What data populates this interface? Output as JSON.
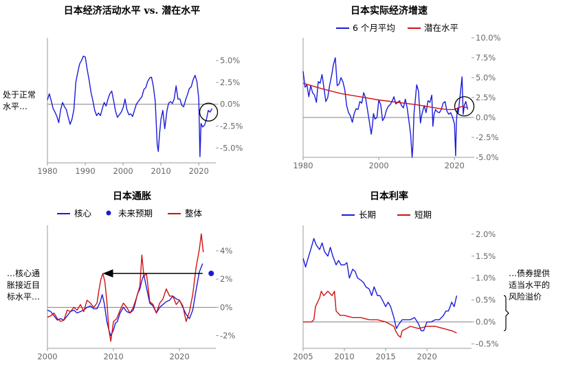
{
  "colors": {
    "blue": "#1a1adb",
    "red": "#d01010",
    "axis": "#999999",
    "zero": "#808080",
    "text": "#666666"
  },
  "chart_data": [
    {
      "type": "line",
      "title": "日本经济活动水平  vs. 潜在水平",
      "note": [
        "处于正常",
        "水平…"
      ],
      "x_ticks": [
        "1980",
        "1990",
        "2000",
        "2010",
        "2020"
      ],
      "y_ticks": [
        "5.0%",
        "2.5%",
        "0.0%",
        "-2.5%",
        "-5.0%"
      ],
      "xlim": [
        1980,
        2024.5
      ],
      "ylim": [
        -6.7,
        7.6
      ],
      "highlight": {
        "shape": "circle",
        "x": 2022.6,
        "y": -0.9
      },
      "series": [
        {
          "color": "blue",
          "x": [
            1980.0,
            1980.5,
            1981.0,
            1981.5,
            1982.0,
            1982.5,
            1983.0,
            1983.5,
            1984.0,
            1984.5,
            1985.0,
            1985.5,
            1986.0,
            1986.5,
            1987.0,
            1987.5,
            1988.0,
            1988.5,
            1989.0,
            1989.5,
            1990.0,
            1990.5,
            1991.0,
            1991.5,
            1992.0,
            1992.5,
            1993.0,
            1993.5,
            1994.0,
            1994.5,
            1995.0,
            1995.5,
            1996.0,
            1996.5,
            1997.0,
            1997.5,
            1998.0,
            1998.5,
            1999.0,
            1999.5,
            2000.0,
            2000.5,
            2001.0,
            2001.5,
            2002.0,
            2002.5,
            2003.0,
            2003.5,
            2004.0,
            2004.5,
            2005.0,
            2005.5,
            2006.0,
            2006.5,
            2007.0,
            2007.5,
            2008.0,
            2008.5,
            2009.0,
            2009.3,
            2009.6,
            2010.0,
            2010.5,
            2011.0,
            2011.3,
            2011.6,
            2012.0,
            2012.5,
            2013.0,
            2013.5,
            2014.0,
            2014.5,
            2015.0,
            2015.5,
            2016.0,
            2016.5,
            2017.0,
            2017.5,
            2018.0,
            2018.5,
            2019.0,
            2019.5,
            2020.0,
            2020.3,
            2020.6,
            2021.0,
            2021.5,
            2022.0,
            2022.5,
            2023.0,
            2023.5
          ],
          "y": [
            0.5,
            1.2,
            0.4,
            -0.5,
            -0.9,
            -1.4,
            -2.1,
            -0.6,
            0.2,
            -0.3,
            -0.6,
            -1.5,
            -2.3,
            -1.7,
            -0.6,
            2.5,
            3.6,
            4.6,
            5.0,
            5.5,
            5.4,
            4.0,
            2.8,
            1.4,
            0.4,
            -0.7,
            -1.3,
            -1.0,
            -1.3,
            -0.5,
            0.2,
            -0.2,
            0.6,
            1.2,
            1.5,
            0.4,
            -0.8,
            -1.5,
            -1.2,
            -0.9,
            -0.4,
            0.6,
            -0.6,
            -1.2,
            -1.1,
            -1.4,
            -0.7,
            0.0,
            0.3,
            0.6,
            0.9,
            1.7,
            1.9,
            2.6,
            3.0,
            3.1,
            2.0,
            0.3,
            -4.6,
            -5.4,
            -3.5,
            -1.7,
            -0.7,
            -2.8,
            -1.8,
            -0.7,
            0.1,
            0.3,
            0.1,
            0.6,
            2.1,
            0.6,
            0.6,
            -0.1,
            -0.3,
            0.5,
            1.1,
            1.8,
            2.0,
            2.8,
            3.3,
            2.6,
            0.6,
            -6.0,
            -2.2,
            -2.6,
            -2.4,
            -1.8,
            -0.7,
            -0.9,
            -0.5
          ]
        }
      ]
    },
    {
      "type": "line",
      "title": "日本实际经济增速",
      "legend": [
        "6 个月平均",
        "潜在水平"
      ],
      "x_ticks": [
        "1980",
        "2000",
        "2020"
      ],
      "y_ticks": [
        "10.0%",
        "7.5%",
        "5.0%",
        "2.5%",
        "0.0%",
        "-2.5%",
        "-5.0%"
      ],
      "xlim": [
        1980,
        2024.5
      ],
      "ylim": [
        -5.0,
        10.0
      ],
      "highlight": {
        "shape": "circle",
        "x": 2022.6,
        "y": 1.4
      },
      "series": [
        {
          "name": "6 个月平均",
          "color": "blue",
          "x": [
            1980.0,
            1980.5,
            1981.0,
            1981.5,
            1982.0,
            1982.5,
            1983.0,
            1983.5,
            1984.0,
            1984.5,
            1985.0,
            1985.5,
            1986.0,
            1986.5,
            1987.0,
            1987.5,
            1988.0,
            1988.5,
            1989.0,
            1989.5,
            1990.0,
            1990.5,
            1991.0,
            1991.5,
            1992.0,
            1992.5,
            1993.0,
            1993.5,
            1994.0,
            1994.5,
            1995.0,
            1995.5,
            1996.0,
            1996.5,
            1997.0,
            1997.5,
            1998.0,
            1998.3,
            1998.6,
            1999.0,
            1999.5,
            2000.0,
            2000.5,
            2001.0,
            2001.5,
            2002.0,
            2002.5,
            2003.0,
            2003.5,
            2004.0,
            2004.5,
            2005.0,
            2005.5,
            2006.0,
            2006.5,
            2007.0,
            2007.5,
            2008.0,
            2008.4,
            2008.8,
            2009.0,
            2009.3,
            2009.6,
            2010.0,
            2010.5,
            2011.0,
            2011.3,
            2011.6,
            2012.0,
            2012.5,
            2013.0,
            2013.5,
            2014.0,
            2014.3,
            2014.6,
            2015.0,
            2015.5,
            2016.0,
            2016.5,
            2017.0,
            2017.5,
            2018.0,
            2018.5,
            2019.0,
            2019.5,
            2020.0,
            2020.3,
            2020.5,
            2020.8,
            2021.0,
            2021.5,
            2022.0,
            2022.3,
            2022.6,
            2023.0,
            2023.5
          ],
          "y": [
            5.8,
            3.8,
            4.1,
            2.6,
            4.0,
            3.1,
            2.8,
            1.9,
            4.5,
            4.3,
            5.4,
            3.7,
            2.0,
            2.5,
            4.0,
            5.2,
            6.6,
            7.5,
            4.0,
            4.2,
            5.0,
            4.5,
            3.5,
            1.5,
            0.6,
            0.2,
            -0.6,
            0.5,
            1.1,
            1.0,
            2.0,
            1.8,
            3.1,
            2.5,
            1.0,
            -0.5,
            -2.1,
            -1.0,
            0.5,
            -0.2,
            0.0,
            2.2,
            1.6,
            -0.4,
            0.0,
            0.9,
            1.4,
            1.6,
            2.0,
            2.6,
            1.7,
            1.9,
            2.1,
            1.5,
            1.2,
            2.3,
            1.2,
            -0.6,
            -2.1,
            -5.0,
            -3.6,
            0.5,
            2.0,
            4.1,
            3.3,
            -0.7,
            0.2,
            0.8,
            1.5,
            0.6,
            2.1,
            1.9,
            2.8,
            -1.1,
            0.4,
            1.0,
            0.7,
            0.6,
            1.0,
            1.8,
            2.0,
            0.8,
            0.4,
            0.6,
            0.0,
            -0.8,
            -4.8,
            -0.5,
            1.2,
            0.6,
            2.8,
            5.1,
            0.4,
            1.5,
            2.0,
            1.0
          ]
        },
        {
          "name": "潜在水平",
          "color": "red",
          "x": [
            1980,
            1985,
            1990,
            1995,
            2000,
            2005,
            2010,
            2015,
            2018,
            2020,
            2022,
            2023.5
          ],
          "y": [
            4.3,
            3.6,
            3.0,
            2.6,
            2.2,
            1.9,
            1.6,
            1.2,
            1.0,
            1.0,
            1.4,
            1.2
          ]
        }
      ]
    },
    {
      "type": "line",
      "title": "日本通胀",
      "legend": [
        "核心",
        "未来预期",
        "整体"
      ],
      "note": [
        "…核心通",
        "胀接近目",
        "标水平…"
      ],
      "x_ticks": [
        "2000",
        "2010",
        "2020"
      ],
      "y_ticks": [
        "4%",
        "2%",
        "0%",
        "-2%"
      ],
      "xlim": [
        2000,
        2025.5
      ],
      "ylim": [
        -2.9,
        5.8
      ],
      "arrow": {
        "from": [
          2023.5,
          2.4
        ],
        "to": [
          2008.7,
          2.4
        ]
      },
      "series": [
        {
          "name": "核心",
          "color": "blue",
          "x": [
            2000.0,
            2000.5,
            2001.0,
            2001.5,
            2002.0,
            2002.5,
            2003.0,
            2003.5,
            2004.0,
            2004.5,
            2005.0,
            2005.5,
            2006.0,
            2006.5,
            2007.0,
            2007.5,
            2008.0,
            2008.3,
            2008.6,
            2009.0,
            2009.3,
            2009.6,
            2010.0,
            2010.3,
            2010.6,
            2011.0,
            2011.5,
            2012.0,
            2012.5,
            2013.0,
            2013.3,
            2013.6,
            2014.0,
            2014.3,
            2014.6,
            2015.0,
            2015.5,
            2016.0,
            2016.5,
            2017.0,
            2017.5,
            2018.0,
            2018.5,
            2019.0,
            2019.5,
            2020.0,
            2020.5,
            2021.0,
            2021.5,
            2022.0,
            2022.5,
            2023.0,
            2023.5
          ],
          "y": [
            -0.2,
            -0.3,
            -0.6,
            -0.9,
            -0.8,
            -0.9,
            -0.6,
            -0.3,
            -0.2,
            -0.4,
            -0.3,
            -0.2,
            0.0,
            0.1,
            -0.1,
            -0.1,
            0.4,
            0.9,
            0.3,
            -1.0,
            -1.6,
            -2.0,
            -1.6,
            -1.1,
            -1.0,
            -0.4,
            0.0,
            -0.3,
            -0.4,
            -0.2,
            0.3,
            0.9,
            1.3,
            1.9,
            2.3,
            1.4,
            0.3,
            0.1,
            -0.4,
            0.0,
            0.2,
            0.4,
            0.5,
            0.8,
            0.6,
            0.5,
            0.0,
            -0.5,
            -0.8,
            -0.2,
            1.2,
            2.5,
            3.1
          ]
        },
        {
          "name": "整体",
          "color": "red",
          "x": [
            2000.0,
            2000.5,
            2001.0,
            2001.5,
            2002.0,
            2002.5,
            2003.0,
            2003.5,
            2004.0,
            2004.5,
            2005.0,
            2005.5,
            2006.0,
            2006.5,
            2007.0,
            2007.5,
            2007.8,
            2008.1,
            2008.4,
            2008.7,
            2009.0,
            2009.3,
            2009.6,
            2010.0,
            2010.5,
            2011.0,
            2011.5,
            2012.0,
            2012.5,
            2013.0,
            2013.5,
            2014.0,
            2014.3,
            2014.6,
            2015.0,
            2015.5,
            2016.0,
            2016.5,
            2017.0,
            2017.5,
            2018.0,
            2018.5,
            2019.0,
            2019.5,
            2020.0,
            2020.5,
            2021.0,
            2021.5,
            2022.0,
            2022.5,
            2023.0,
            2023.3,
            2023.6
          ],
          "y": [
            -0.7,
            -0.6,
            -0.4,
            -0.8,
            -1.0,
            -0.9,
            -0.2,
            -0.3,
            0.0,
            -0.2,
            0.2,
            -0.3,
            0.5,
            0.3,
            0.0,
            0.3,
            1.2,
            2.0,
            2.4,
            1.8,
            0.4,
            -1.6,
            -2.4,
            -1.0,
            -0.8,
            -0.2,
            0.3,
            0.0,
            -0.4,
            0.0,
            0.7,
            1.5,
            3.7,
            2.2,
            2.4,
            0.4,
            0.2,
            -0.4,
            0.3,
            0.6,
            1.3,
            0.8,
            0.8,
            0.2,
            0.5,
            0.1,
            -1.0,
            -0.3,
            0.9,
            2.8,
            4.1,
            5.2,
            3.9
          ]
        },
        {
          "name": "未来预期",
          "color": "blue",
          "marker": true,
          "x": [
            2024.8
          ],
          "y": [
            2.4
          ]
        }
      ]
    },
    {
      "type": "line",
      "title": "日本利率",
      "legend": [
        "长期",
        "短期"
      ],
      "note": [
        "…债券提供",
        "适当水平的",
        "风险溢价"
      ],
      "x_ticks": [
        "2005",
        "2010",
        "2015",
        "2020"
      ],
      "y_ticks": [
        "2.0%",
        "1.5%",
        "1.0%",
        "0.5%",
        "0.0%",
        "-0.5%"
      ],
      "xlim": [
        2005,
        2025.4
      ],
      "ylim": [
        -0.6,
        2.2
      ],
      "bracket": {
        "from": 0.6,
        "to": -0.2
      },
      "series": [
        {
          "name": "长期",
          "color": "blue",
          "x": [
            2005.0,
            2005.3,
            2005.6,
            2006.0,
            2006.3,
            2006.6,
            2007.0,
            2007.3,
            2007.6,
            2008.0,
            2008.3,
            2008.6,
            2009.0,
            2009.3,
            2009.6,
            2010.0,
            2010.3,
            2010.6,
            2011.0,
            2011.3,
            2011.6,
            2012.0,
            2012.3,
            2012.6,
            2013.0,
            2013.3,
            2013.6,
            2014.0,
            2014.3,
            2014.6,
            2015.0,
            2015.3,
            2015.6,
            2016.0,
            2016.3,
            2016.6,
            2017.0,
            2017.5,
            2018.0,
            2018.5,
            2019.0,
            2019.3,
            2019.6,
            2020.0,
            2020.5,
            2021.0,
            2021.5,
            2022.0,
            2022.3,
            2022.6,
            2023.0,
            2023.3,
            2023.6
          ],
          "y": [
            1.45,
            1.25,
            1.45,
            1.7,
            1.9,
            1.75,
            1.65,
            1.8,
            1.6,
            1.5,
            1.7,
            1.5,
            1.3,
            1.4,
            1.3,
            1.3,
            1.35,
            1.0,
            1.2,
            1.15,
            1.0,
            0.95,
            0.9,
            0.8,
            0.75,
            0.6,
            0.8,
            0.6,
            0.6,
            0.5,
            0.35,
            0.45,
            0.35,
            0.1,
            -0.15,
            -0.05,
            0.05,
            0.05,
            0.05,
            0.1,
            -0.05,
            -0.2,
            -0.2,
            0.0,
            0.0,
            0.05,
            0.05,
            0.15,
            0.25,
            0.25,
            0.45,
            0.35,
            0.6
          ]
        },
        {
          "name": "短期",
          "color": "red",
          "x": [
            2005.0,
            2005.5,
            2006.0,
            2006.3,
            2006.5,
            2007.0,
            2007.2,
            2007.5,
            2008.0,
            2008.5,
            2008.8,
            2009.0,
            2009.5,
            2010.0,
            2011.0,
            2012.0,
            2013.0,
            2014.0,
            2015.0,
            2015.5,
            2016.0,
            2016.2,
            2016.5,
            2016.8,
            2017.0,
            2017.5,
            2018.0,
            2019.0,
            2020.0,
            2021.0,
            2022.0,
            2023.0,
            2023.6
          ],
          "y": [
            0.0,
            0.0,
            0.0,
            0.05,
            0.35,
            0.55,
            0.7,
            0.6,
            0.7,
            0.6,
            0.7,
            0.25,
            0.15,
            0.15,
            0.1,
            0.1,
            0.05,
            0.05,
            0.0,
            -0.05,
            -0.1,
            -0.2,
            -0.3,
            -0.35,
            -0.2,
            -0.15,
            -0.1,
            -0.15,
            -0.1,
            -0.1,
            -0.15,
            -0.2,
            -0.25
          ]
        }
      ]
    }
  ]
}
